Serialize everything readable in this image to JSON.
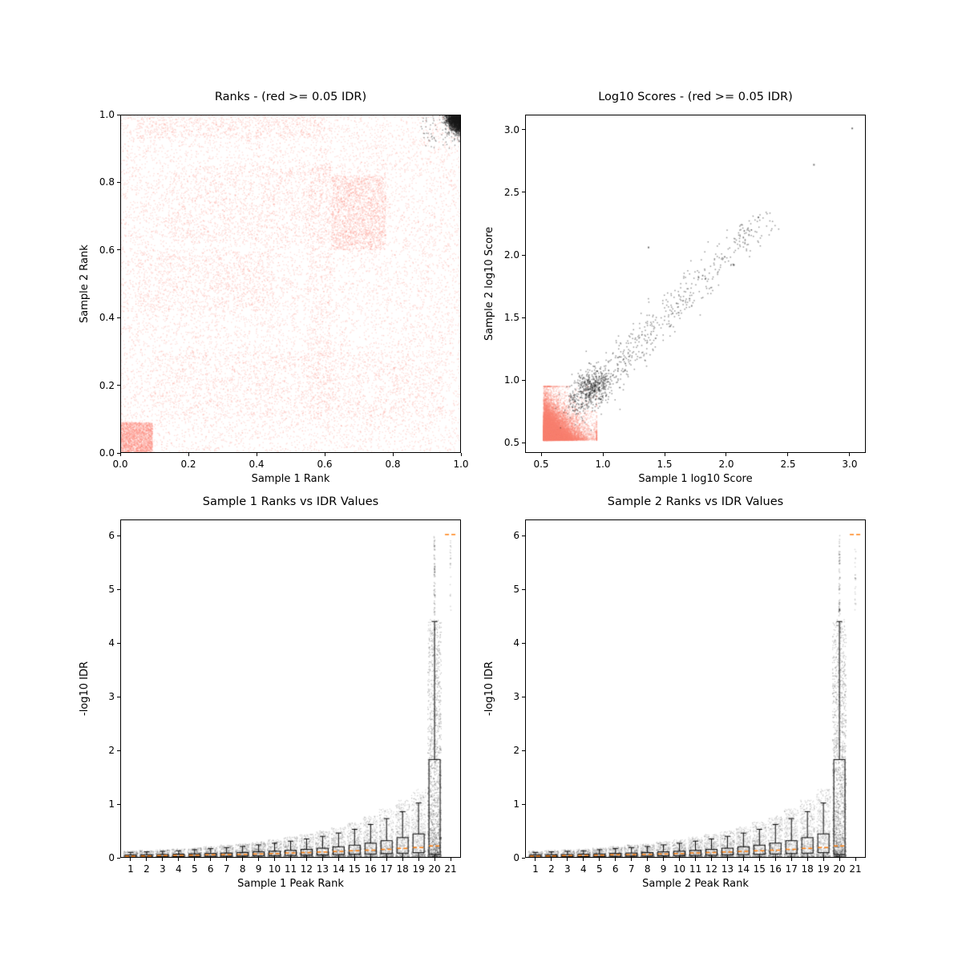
{
  "figure": {
    "background": "#ffffff"
  },
  "colors": {
    "salmon": "#FA8072",
    "black": "#000000",
    "median_orange": "#ff7f0e"
  },
  "chart_data": [
    {
      "id": "ranks",
      "type": "scatter",
      "seed": 101,
      "title": "Ranks - (red >= 0.05 IDR)",
      "xlabel": "Sample 1 Rank",
      "ylabel": "Sample 2 Rank",
      "xlim": [
        0,
        1
      ],
      "ylim": [
        0,
        1
      ],
      "xticks": {
        "values": [
          0,
          0.2,
          0.4,
          0.6,
          0.8,
          1
        ],
        "labels": [
          "0.0",
          "0.2",
          "0.4",
          "0.6",
          "0.8",
          "1.0"
        ]
      },
      "yticks": {
        "values": [
          0,
          0.2,
          0.4,
          0.6,
          0.8,
          1
        ],
        "labels": [
          "0.0",
          "0.2",
          "0.4",
          "0.6",
          "0.8",
          "1.0"
        ]
      },
      "series": [
        {
          "name": "idr-ge-0.05-red",
          "color": "#FA8072",
          "alpha": 0.28,
          "size": 1.3,
          "clusters": [
            {
              "kind": "uniform",
              "n": 12000,
              "x": [
                0.0,
                1.0
              ],
              "y": [
                0.0,
                1.0
              ]
            },
            {
              "kind": "uniform",
              "n": 2600,
              "x": [
                0.0,
                0.095
              ],
              "y": [
                0.0,
                0.09
              ]
            },
            {
              "kind": "uniform",
              "n": 2000,
              "x": [
                0.62,
                0.78
              ],
              "y": [
                0.6,
                0.82
              ]
            },
            {
              "kind": "uniform",
              "n": 1100,
              "x": [
                0.15,
                0.62
              ],
              "y": [
                0.62,
                0.85
              ]
            },
            {
              "kind": "uniform",
              "n": 800,
              "x": [
                0.05,
                0.45
              ],
              "y": [
                0.42,
                0.6
              ]
            },
            {
              "kind": "uniform",
              "n": 700,
              "x": [
                0.05,
                0.6
              ],
              "y": [
                0.93,
                1.0
              ]
            },
            {
              "kind": "uniform",
              "n": 600,
              "x": [
                0.55,
                0.62
              ],
              "y": [
                0.1,
                0.9
              ]
            },
            {
              "kind": "uniform",
              "n": 1400,
              "x": [
                0.1,
                0.95
              ],
              "y": [
                0.1,
                0.3
              ]
            }
          ]
        },
        {
          "name": "idr-lt-0.05-black",
          "color": "#1a1a1a",
          "alpha": 0.45,
          "size": 1.4,
          "clusters": [
            {
              "kind": "corner",
              "n": 2200,
              "cx": 1.0,
              "cy": 1.0,
              "sx": 0.018,
              "sy": 0.022
            },
            {
              "kind": "uniform",
              "n": 80,
              "x": [
                0.88,
                1.0
              ],
              "y": [
                0.9,
                1.0
              ]
            }
          ]
        }
      ]
    },
    {
      "id": "scores",
      "type": "scatter",
      "seed": 202,
      "title": "Log10 Scores - (red >= 0.05 IDR)",
      "xlabel": "Sample 1 log10 Score",
      "ylabel": "Sample 2 log10 Score",
      "xlim": [
        0.37,
        3.13
      ],
      "ylim": [
        0.42,
        3.12
      ],
      "xticks": {
        "values": [
          0.5,
          1.0,
          1.5,
          2.0,
          2.5,
          3.0
        ],
        "labels": [
          "0.5",
          "1.0",
          "1.5",
          "2.0",
          "2.5",
          "3.0"
        ]
      },
      "yticks": {
        "values": [
          0.5,
          1.0,
          1.5,
          2.0,
          2.5,
          3.0
        ],
        "labels": [
          "0.5",
          "1.0",
          "1.5",
          "2.0",
          "2.5",
          "3.0"
        ]
      },
      "series": [
        {
          "name": "idr-ge-0.05-red",
          "color": "#FA8072",
          "alpha": 0.3,
          "size": 1.5,
          "clusters": [
            {
              "kind": "expblob",
              "n": 15000,
              "x0": 0.52,
              "y0": 0.52,
              "scale": 0.085,
              "cap": 0.43
            },
            {
              "kind": "expblob",
              "n": 6000,
              "x0": 0.52,
              "y0": 0.52,
              "scale": 0.05,
              "cap": 0.43
            }
          ]
        },
        {
          "name": "idr-lt-0.05-black",
          "color": "#1a1a1a",
          "alpha": 0.45,
          "size": 1.5,
          "clusters": [
            {
              "kind": "diag",
              "n": 760,
              "start": 0.8,
              "end": 2.32,
              "noise": 0.07,
              "pow": 2.1
            },
            {
              "kind": "gauss",
              "n": 300,
              "cx": 0.92,
              "cy": 0.95,
              "sx": 0.07,
              "sy": 0.06
            },
            {
              "kind": "points",
              "alpha": 0.6,
              "size": 2,
              "pts": [
                [
                  2.71,
                  2.72
                ],
                [
                  3.02,
                  3.01
                ],
                [
                  1.37,
                  2.06
                ],
                [
                  2.26,
                  2.3
                ],
                [
                  2.06,
                  1.92
                ]
              ]
            }
          ]
        }
      ]
    },
    {
      "id": "sample1-rank-idr",
      "type": "box",
      "seed": 303,
      "title": "Sample 1 Ranks vs IDR Values",
      "xlabel": "Sample 1 Peak Rank",
      "ylabel": "-log10 IDR",
      "xlim": [
        0.35,
        21.65
      ],
      "ylim": [
        0,
        6.3
      ],
      "xticks": {
        "values": [
          1,
          2,
          3,
          4,
          5,
          6,
          7,
          8,
          9,
          10,
          11,
          12,
          13,
          14,
          15,
          16,
          17,
          18,
          19,
          20,
          21
        ],
        "labels": [
          "1",
          "2",
          "3",
          "4",
          "5",
          "6",
          "7",
          "8",
          "9",
          "10",
          "11",
          "12",
          "13",
          "14",
          "15",
          "16",
          "17",
          "18",
          "19",
          "20",
          "21"
        ]
      },
      "yticks": {
        "values": [
          0,
          1,
          2,
          3,
          4,
          5,
          6
        ],
        "labels": [
          "0",
          "1",
          "2",
          "3",
          "4",
          "5",
          "6"
        ]
      },
      "box_color": "#000000",
      "median_color": "#ff7f0e",
      "scatter": {
        "color": "#000000",
        "alpha": 0.15,
        "size": 1.3,
        "base_n": 240,
        "per_rank_n": 22,
        "pow": 2.4,
        "envelope": 1.25,
        "jitter": 0.9
      },
      "spike": {
        "rank": 20,
        "n": 1600,
        "max": 4.45,
        "pow": 2.0,
        "alpha": 0.22,
        "jitter": 0.85
      },
      "fliers": [
        {
          "x": 20,
          "y0": 4.5,
          "y1": 6.0,
          "n": 70,
          "alpha": 0.2,
          "jitter": 0.07
        },
        {
          "x": 21,
          "y0": 4.6,
          "y1": 6.0,
          "n": 24,
          "alpha": 0.15,
          "jitter": 0.06
        }
      ],
      "top_dash": {
        "x": 21,
        "y": 6.02
      },
      "boxes": [
        {
          "rank": 1,
          "med": 0.03,
          "q1": 0.015,
          "q3": 0.05,
          "hi": 0.1,
          "lo": 0.005
        },
        {
          "rank": 2,
          "med": 0.035,
          "q1": 0.018,
          "q3": 0.055,
          "hi": 0.11,
          "lo": 0.005
        },
        {
          "rank": 3,
          "med": 0.04,
          "q1": 0.02,
          "q3": 0.06,
          "hi": 0.12,
          "lo": 0.005
        },
        {
          "rank": 4,
          "med": 0.045,
          "q1": 0.022,
          "q3": 0.065,
          "hi": 0.13,
          "lo": 0.005
        },
        {
          "rank": 5,
          "med": 0.05,
          "q1": 0.025,
          "q3": 0.072,
          "hi": 0.15,
          "lo": 0.005
        },
        {
          "rank": 6,
          "med": 0.055,
          "q1": 0.027,
          "q3": 0.08,
          "hi": 0.17,
          "lo": 0.005
        },
        {
          "rank": 7,
          "med": 0.06,
          "q1": 0.03,
          "q3": 0.088,
          "hi": 0.19,
          "lo": 0.005
        },
        {
          "rank": 8,
          "med": 0.065,
          "q1": 0.032,
          "q3": 0.098,
          "hi": 0.21,
          "lo": 0.005
        },
        {
          "rank": 9,
          "med": 0.072,
          "q1": 0.036,
          "q3": 0.11,
          "hi": 0.24,
          "lo": 0.005
        },
        {
          "rank": 10,
          "med": 0.08,
          "q1": 0.04,
          "q3": 0.122,
          "hi": 0.27,
          "lo": 0.005
        },
        {
          "rank": 11,
          "med": 0.088,
          "q1": 0.044,
          "q3": 0.138,
          "hi": 0.31,
          "lo": 0.005
        },
        {
          "rank": 12,
          "med": 0.097,
          "q1": 0.048,
          "q3": 0.156,
          "hi": 0.35,
          "lo": 0.005
        },
        {
          "rank": 13,
          "med": 0.107,
          "q1": 0.053,
          "q3": 0.178,
          "hi": 0.4,
          "lo": 0.005
        },
        {
          "rank": 14,
          "med": 0.118,
          "q1": 0.058,
          "q3": 0.205,
          "hi": 0.46,
          "lo": 0.005
        },
        {
          "rank": 15,
          "med": 0.13,
          "q1": 0.064,
          "q3": 0.235,
          "hi": 0.53,
          "lo": 0.005
        },
        {
          "rank": 16,
          "med": 0.143,
          "q1": 0.071,
          "q3": 0.272,
          "hi": 0.62,
          "lo": 0.005
        },
        {
          "rank": 17,
          "med": 0.158,
          "q1": 0.078,
          "q3": 0.318,
          "hi": 0.73,
          "lo": 0.005
        },
        {
          "rank": 18,
          "med": 0.174,
          "q1": 0.086,
          "q3": 0.375,
          "hi": 0.86,
          "lo": 0.005
        },
        {
          "rank": 19,
          "med": 0.192,
          "q1": 0.095,
          "q3": 0.445,
          "hi": 1.02,
          "lo": 0.005
        },
        {
          "rank": 20,
          "med": 0.22,
          "q1": 0.06,
          "q3": 1.83,
          "hi": 4.4,
          "lo": 0.01
        }
      ]
    },
    {
      "id": "sample2-rank-idr",
      "type": "box",
      "seed": 404,
      "title": "Sample 2 Ranks vs IDR Values",
      "xlabel": "Sample 2 Peak Rank",
      "ylabel": "-log10 IDR",
      "xlim": [
        0.35,
        21.65
      ],
      "ylim": [
        0,
        6.3
      ],
      "xticks": {
        "values": [
          1,
          2,
          3,
          4,
          5,
          6,
          7,
          8,
          9,
          10,
          11,
          12,
          13,
          14,
          15,
          16,
          17,
          18,
          19,
          20,
          21
        ],
        "labels": [
          "1",
          "2",
          "3",
          "4",
          "5",
          "6",
          "7",
          "8",
          "9",
          "10",
          "11",
          "12",
          "13",
          "14",
          "15",
          "16",
          "17",
          "18",
          "19",
          "20",
          "21"
        ]
      },
      "yticks": {
        "values": [
          0,
          1,
          2,
          3,
          4,
          5,
          6
        ],
        "labels": [
          "0",
          "1",
          "2",
          "3",
          "4",
          "5",
          "6"
        ]
      },
      "box_color": "#000000",
      "median_color": "#ff7f0e",
      "scatter": {
        "color": "#000000",
        "alpha": 0.15,
        "size": 1.3,
        "base_n": 240,
        "per_rank_n": 22,
        "pow": 2.4,
        "envelope": 1.25,
        "jitter": 0.9
      },
      "spike": {
        "rank": 20,
        "n": 1600,
        "max": 4.45,
        "pow": 2.0,
        "alpha": 0.22,
        "jitter": 0.85
      },
      "fliers": [
        {
          "x": 20,
          "y0": 4.5,
          "y1": 6.0,
          "n": 70,
          "alpha": 0.2,
          "jitter": 0.07
        },
        {
          "x": 21,
          "y0": 4.6,
          "y1": 6.0,
          "n": 24,
          "alpha": 0.15,
          "jitter": 0.06
        }
      ],
      "top_dash": {
        "x": 21,
        "y": 6.02
      },
      "boxes": [
        {
          "rank": 1,
          "med": 0.03,
          "q1": 0.015,
          "q3": 0.05,
          "hi": 0.1,
          "lo": 0.005
        },
        {
          "rank": 2,
          "med": 0.035,
          "q1": 0.018,
          "q3": 0.055,
          "hi": 0.11,
          "lo": 0.005
        },
        {
          "rank": 3,
          "med": 0.04,
          "q1": 0.02,
          "q3": 0.06,
          "hi": 0.12,
          "lo": 0.005
        },
        {
          "rank": 4,
          "med": 0.045,
          "q1": 0.022,
          "q3": 0.065,
          "hi": 0.13,
          "lo": 0.005
        },
        {
          "rank": 5,
          "med": 0.05,
          "q1": 0.025,
          "q3": 0.072,
          "hi": 0.15,
          "lo": 0.005
        },
        {
          "rank": 6,
          "med": 0.055,
          "q1": 0.027,
          "q3": 0.08,
          "hi": 0.17,
          "lo": 0.005
        },
        {
          "rank": 7,
          "med": 0.06,
          "q1": 0.03,
          "q3": 0.088,
          "hi": 0.19,
          "lo": 0.005
        },
        {
          "rank": 8,
          "med": 0.065,
          "q1": 0.032,
          "q3": 0.098,
          "hi": 0.21,
          "lo": 0.005
        },
        {
          "rank": 9,
          "med": 0.072,
          "q1": 0.036,
          "q3": 0.11,
          "hi": 0.24,
          "lo": 0.005
        },
        {
          "rank": 10,
          "med": 0.08,
          "q1": 0.04,
          "q3": 0.122,
          "hi": 0.27,
          "lo": 0.005
        },
        {
          "rank": 11,
          "med": 0.088,
          "q1": 0.044,
          "q3": 0.138,
          "hi": 0.31,
          "lo": 0.005
        },
        {
          "rank": 12,
          "med": 0.097,
          "q1": 0.048,
          "q3": 0.156,
          "hi": 0.35,
          "lo": 0.005
        },
        {
          "rank": 13,
          "med": 0.107,
          "q1": 0.053,
          "q3": 0.178,
          "hi": 0.4,
          "lo": 0.005
        },
        {
          "rank": 14,
          "med": 0.118,
          "q1": 0.058,
          "q3": 0.205,
          "hi": 0.46,
          "lo": 0.005
        },
        {
          "rank": 15,
          "med": 0.13,
          "q1": 0.064,
          "q3": 0.235,
          "hi": 0.53,
          "lo": 0.005
        },
        {
          "rank": 16,
          "med": 0.143,
          "q1": 0.071,
          "q3": 0.272,
          "hi": 0.62,
          "lo": 0.005
        },
        {
          "rank": 17,
          "med": 0.158,
          "q1": 0.078,
          "q3": 0.318,
          "hi": 0.73,
          "lo": 0.005
        },
        {
          "rank": 18,
          "med": 0.174,
          "q1": 0.086,
          "q3": 0.375,
          "hi": 0.86,
          "lo": 0.005
        },
        {
          "rank": 19,
          "med": 0.192,
          "q1": 0.095,
          "q3": 0.445,
          "hi": 1.02,
          "lo": 0.005
        },
        {
          "rank": 20,
          "med": 0.22,
          "q1": 0.06,
          "q3": 1.83,
          "hi": 4.4,
          "lo": 0.01
        }
      ]
    }
  ]
}
